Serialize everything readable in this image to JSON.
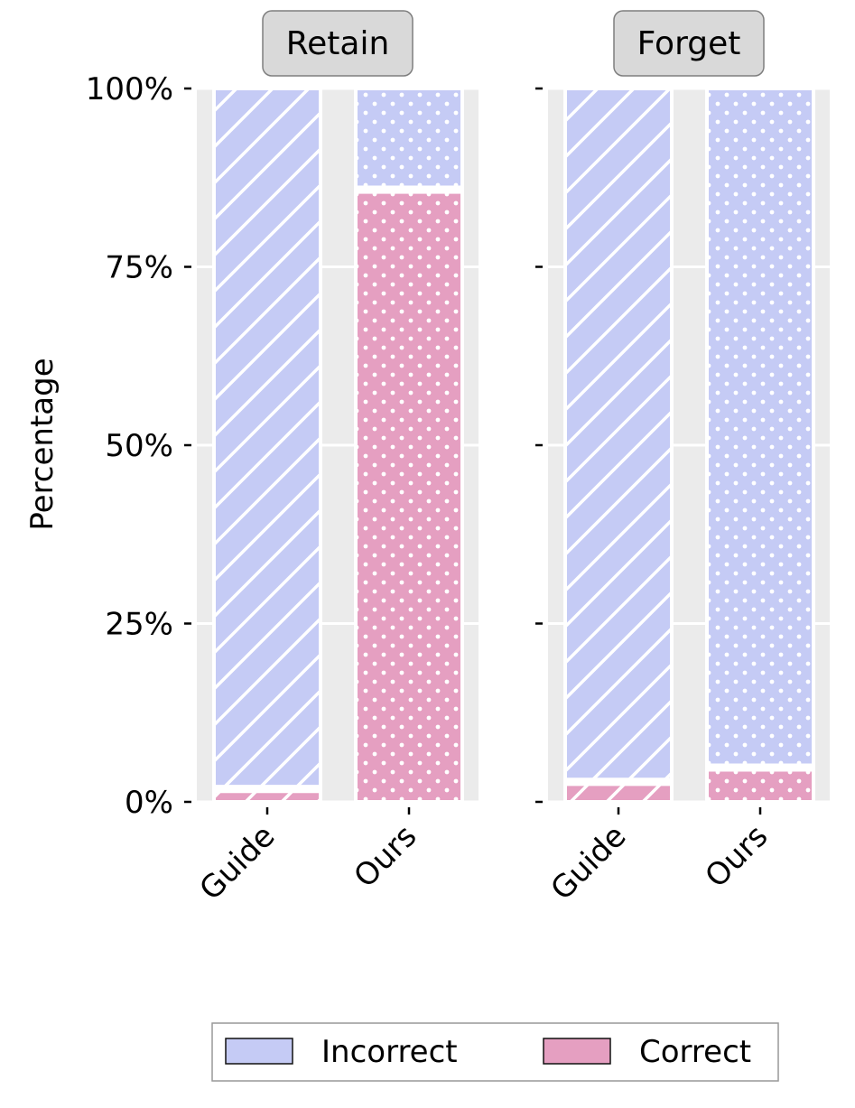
{
  "chart_data": {
    "type": "bar",
    "stacked": true,
    "ylabel": "Percentage",
    "ylim": [
      0,
      100
    ],
    "yticks": [
      "0%",
      "25%",
      "50%",
      "75%",
      "100%"
    ],
    "ytick_values": [
      0,
      25,
      50,
      75,
      100
    ],
    "grid": true,
    "legend_placement": "bottom-center",
    "colors": {
      "Incorrect": "#c5cbf5",
      "Correct": "#e59fc1",
      "grid_bg": "#ebebeb"
    },
    "legend": [
      {
        "name": "Incorrect",
        "color": "#c5cbf5"
      },
      {
        "name": "Correct",
        "color": "#e59fc1"
      }
    ],
    "panels": [
      {
        "title": "Retain",
        "categories": [
          "Guide",
          "Ours"
        ],
        "series": [
          {
            "name": "Correct",
            "values": [
              1.5,
              85.5
            ]
          },
          {
            "name": "Incorrect",
            "values": [
              98.5,
              14.5
            ]
          }
        ],
        "patterns": [
          "diagonal",
          "dots"
        ]
      },
      {
        "title": "Forget",
        "categories": [
          "Guide",
          "Ours"
        ],
        "series": [
          {
            "name": "Correct",
            "values": [
              2.5,
              4.5
            ]
          },
          {
            "name": "Incorrect",
            "values": [
              97.5,
              95.5
            ]
          }
        ],
        "patterns": [
          "diagonal",
          "dots"
        ]
      }
    ]
  }
}
